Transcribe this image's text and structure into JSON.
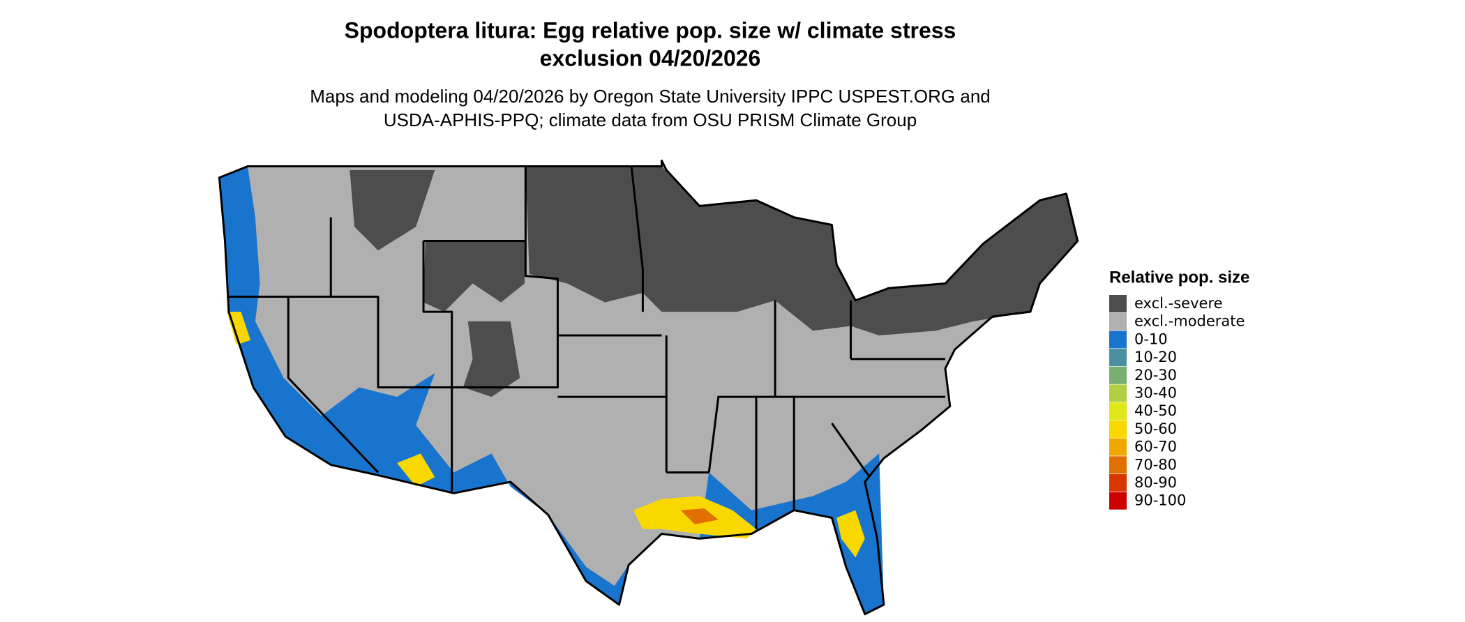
{
  "title": [
    "Spodoptera litura: Egg relative pop. size w/ climate stress",
    "exclusion 04/20/2026"
  ],
  "subtitle": [
    "Maps and modeling 04/20/2026 by Oregon State University IPPC USPEST.ORG and",
    "USDA-APHIS-PPQ; climate data from OSU PRISM Climate Group"
  ],
  "legend": {
    "title": "Relative pop. size",
    "items": [
      {
        "label": "excl.-severe",
        "color": "#4d4d4d"
      },
      {
        "label": "excl.-moderate",
        "color": "#b0b0b0"
      },
      {
        "label": "0-10",
        "color": "#1874cd"
      },
      {
        "label": "10-20",
        "color": "#4a90a0"
      },
      {
        "label": "20-30",
        "color": "#7aae72"
      },
      {
        "label": "30-40",
        "color": "#b2cf44"
      },
      {
        "label": "40-50",
        "color": "#e0e818"
      },
      {
        "label": "50-60",
        "color": "#f9d800"
      },
      {
        "label": "60-70",
        "color": "#f0a800"
      },
      {
        "label": "70-80",
        "color": "#e07000"
      },
      {
        "label": "80-90",
        "color": "#d83800"
      },
      {
        "label": "90-100",
        "color": "#cc0000"
      }
    ]
  }
}
